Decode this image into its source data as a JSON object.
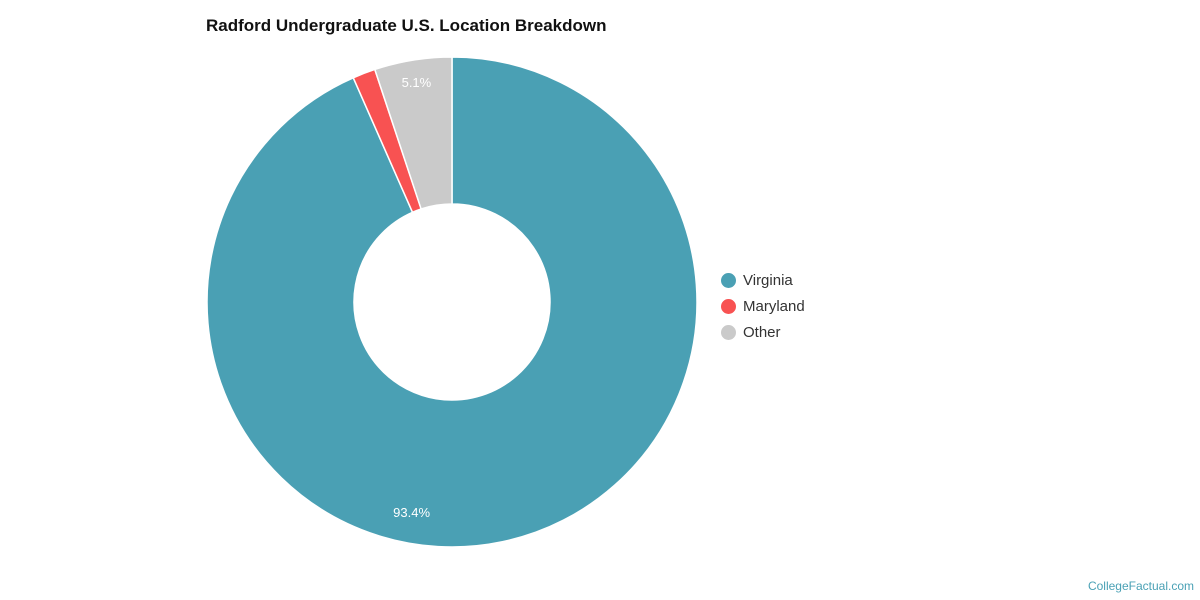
{
  "chart_data": {
    "type": "pie",
    "variant": "donut",
    "title": "Radford Undergraduate U.S. Location Breakdown",
    "categories": [
      "Virginia",
      "Maryland",
      "Other"
    ],
    "values": [
      93.4,
      1.5,
      5.1
    ],
    "value_labels": [
      "93.4%",
      "",
      "5.1%"
    ],
    "colors": [
      "#4aa0b4",
      "#f85252",
      "#cacaca"
    ],
    "legend_position": "right",
    "start_angle_deg": 0,
    "direction": "clockwise"
  },
  "title": "Radford Undergraduate U.S. Location Breakdown",
  "legend": [
    {
      "label": "Virginia",
      "color": "#4aa0b4"
    },
    {
      "label": "Maryland",
      "color": "#f85252"
    },
    {
      "label": "Other",
      "color": "#cacaca"
    }
  ],
  "credit": "CollegeFactual.com"
}
